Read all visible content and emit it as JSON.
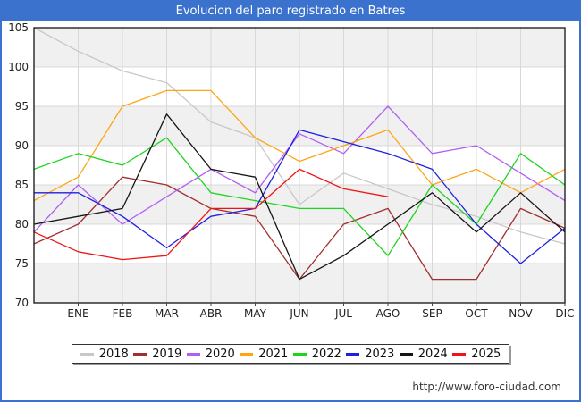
{
  "footer": {
    "url": "http://www.foro-ciudad.com"
  },
  "colors": {
    "titlebar_bg": "#3a72cd",
    "title_text": "#ffffff",
    "band_gray": "#f0f0f0",
    "gridline": "#d8d8d8",
    "plot_border": "#222222",
    "axis_text": "#222222"
  },
  "chart_data": {
    "type": "line",
    "title": "Evolucion del paro registrado en Batres",
    "xlabel": "",
    "ylabel": "",
    "x_labels": [
      "ENE",
      "FEB",
      "MAR",
      "ABR",
      "MAY",
      "JUN",
      "JUL",
      "AGO",
      "SEP",
      "OCT",
      "NOV",
      "DIC"
    ],
    "x_label_start_index": 1,
    "points_per_full_series": 13,
    "y_ticks": [
      105,
      100,
      95,
      90,
      85,
      80,
      75,
      70
    ],
    "ylim": [
      70,
      105
    ],
    "grid": true,
    "banding": "alternate horizontal gray bands starting at top (105-100)",
    "legend_position": "bottom",
    "series": [
      {
        "name": "2018",
        "color": "#c8c8c8",
        "values": [
          105,
          102,
          99.5,
          98,
          93,
          91,
          82.5,
          86.5,
          84.5,
          82.5,
          81,
          79,
          77.5
        ]
      },
      {
        "name": "2019",
        "color": "#a03030",
        "values": [
          77.5,
          80,
          86,
          85,
          82,
          81,
          73,
          80,
          82,
          73,
          73,
          82,
          79.5
        ]
      },
      {
        "name": "2020",
        "color": "#b15ef2",
        "values": [
          79,
          85,
          80,
          83.5,
          87,
          84,
          91.5,
          89,
          95,
          89,
          90,
          86.5,
          83
        ]
      },
      {
        "name": "2021",
        "color": "#ffa513",
        "values": [
          83,
          86,
          95,
          97,
          97,
          91,
          88,
          90,
          92,
          85,
          87,
          84,
          87
        ]
      },
      {
        "name": "2022",
        "color": "#1ed51e",
        "values": [
          87,
          89,
          87.5,
          91,
          84,
          83,
          82,
          82,
          76,
          85,
          80,
          89,
          85
        ]
      },
      {
        "name": "2023",
        "color": "#1f1fe0",
        "values": [
          84,
          84,
          81,
          77,
          81,
          82,
          92,
          90.5,
          89,
          87,
          80,
          75,
          79.5
        ]
      },
      {
        "name": "2024",
        "color": "#151515",
        "values": [
          80,
          81,
          82,
          94,
          87,
          86,
          73,
          76,
          80,
          84,
          79,
          84,
          79
        ]
      },
      {
        "name": "2025",
        "color": "#f01515",
        "values": [
          79,
          76.5,
          75.5,
          76,
          82,
          82,
          87,
          84.5,
          83.5
        ]
      }
    ]
  }
}
